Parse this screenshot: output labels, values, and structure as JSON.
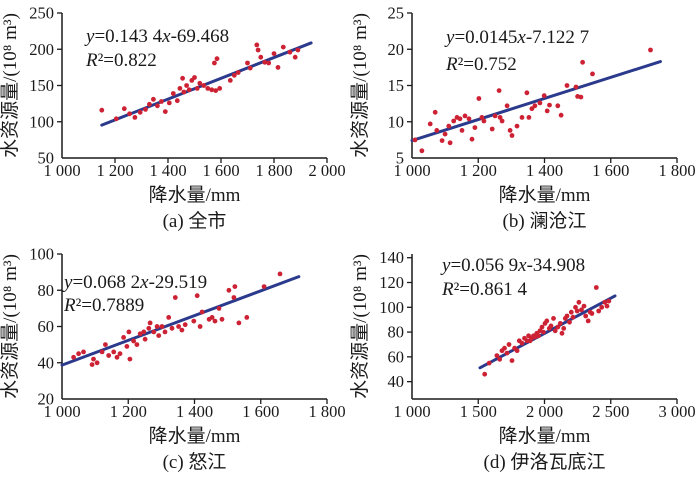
{
  "figure": {
    "background": "#ffffff",
    "point_color": "#cd2134",
    "trend_color": "#2b3a8c",
    "axis_color": "#1a1a1a",
    "text_color": "#1a1a1a"
  },
  "chart_data": [
    {
      "id": "a",
      "type": "scatter",
      "caption": "(a) 全市",
      "xlabel": "降水量/mm",
      "ylabel": "水资源量/(10⁸ m³)",
      "equation": "y=0.143 4x-69.468",
      "r2": "R²=0.822",
      "eq_pos": [
        86,
        42
      ],
      "r2_pos": [
        86,
        66
      ],
      "xlim": [
        1000,
        2000
      ],
      "ylim": [
        50,
        250
      ],
      "xticks": [
        1000,
        1200,
        1400,
        1600,
        1800,
        2000
      ],
      "xtick_labels": [
        "1 000",
        "1 200",
        "1 400",
        "1 600",
        "1 800",
        "2 000"
      ],
      "yticks": [
        50,
        100,
        150,
        200,
        250
      ],
      "ytick_labels": [
        "50",
        "100",
        "150",
        "200",
        "250"
      ],
      "grid": false,
      "legend": null,
      "trend": [
        [
          1150,
          95.4
        ],
        [
          1940,
          208.7
        ]
      ],
      "points": [
        [
          1150,
          116
        ],
        [
          1205,
          104
        ],
        [
          1235,
          118
        ],
        [
          1255,
          111
        ],
        [
          1275,
          106
        ],
        [
          1295,
          113
        ],
        [
          1315,
          117
        ],
        [
          1330,
          124
        ],
        [
          1345,
          131
        ],
        [
          1360,
          122
        ],
        [
          1375,
          128
        ],
        [
          1390,
          114
        ],
        [
          1405,
          126
        ],
        [
          1420,
          139
        ],
        [
          1435,
          129
        ],
        [
          1445,
          146
        ],
        [
          1455,
          160
        ],
        [
          1460,
          141
        ],
        [
          1470,
          150
        ],
        [
          1480,
          144
        ],
        [
          1490,
          157
        ],
        [
          1500,
          161
        ],
        [
          1510,
          146
        ],
        [
          1520,
          153
        ],
        [
          1535,
          150
        ],
        [
          1550,
          146
        ],
        [
          1565,
          144
        ],
        [
          1575,
          181
        ],
        [
          1580,
          143
        ],
        [
          1585,
          187
        ],
        [
          1595,
          146
        ],
        [
          1635,
          157
        ],
        [
          1650,
          164
        ],
        [
          1665,
          168
        ],
        [
          1700,
          181
        ],
        [
          1710,
          174
        ],
        [
          1735,
          206
        ],
        [
          1740,
          199
        ],
        [
          1750,
          189
        ],
        [
          1765,
          182
        ],
        [
          1780,
          181
        ],
        [
          1800,
          194
        ],
        [
          1815,
          175
        ],
        [
          1835,
          203
        ],
        [
          1860,
          196
        ],
        [
          1880,
          189
        ],
        [
          1890,
          199
        ]
      ]
    },
    {
      "id": "b",
      "type": "scatter",
      "caption": "(b) 澜沧江",
      "xlabel": "降水量/mm",
      "ylabel": "水资源量/(10⁸ m³)",
      "equation": "y=0.0145x-7.122 7",
      "r2": "R²=0.752",
      "eq_pos": [
        96,
        43
      ],
      "r2_pos": [
        96,
        70
      ],
      "xlim": [
        1000,
        1800
      ],
      "ylim": [
        5,
        25
      ],
      "xticks": [
        1000,
        1200,
        1400,
        1600,
        1800
      ],
      "xtick_labels": [
        "1 000",
        "1 200",
        "1 400",
        "1 600",
        "1 800"
      ],
      "yticks": [
        5,
        10,
        15,
        20,
        25
      ],
      "ytick_labels": [
        "5",
        "10",
        "15",
        "20",
        "25"
      ],
      "grid": false,
      "legend": null,
      "trend": [
        [
          1000,
          7.4
        ],
        [
          1750,
          18.3
        ]
      ],
      "points": [
        [
          1009,
          7.5
        ],
        [
          1030,
          6.0
        ],
        [
          1055,
          9.7
        ],
        [
          1070,
          11.3
        ],
        [
          1075,
          8.8
        ],
        [
          1091,
          7.4
        ],
        [
          1100,
          8.3
        ],
        [
          1111,
          9.4
        ],
        [
          1115,
          7.1
        ],
        [
          1126,
          10.1
        ],
        [
          1136,
          10.6
        ],
        [
          1145,
          10.4
        ],
        [
          1151,
          8.8
        ],
        [
          1160,
          10.8
        ],
        [
          1172,
          10.4
        ],
        [
          1181,
          7.6
        ],
        [
          1190,
          9.2
        ],
        [
          1202,
          13.2
        ],
        [
          1211,
          10.6
        ],
        [
          1217,
          10.1
        ],
        [
          1242,
          9.0
        ],
        [
          1251,
          10.8
        ],
        [
          1263,
          14.3
        ],
        [
          1266,
          10.6
        ],
        [
          1272,
          10.1
        ],
        [
          1287,
          12.2
        ],
        [
          1296,
          8.8
        ],
        [
          1302,
          8.1
        ],
        [
          1317,
          9.4
        ],
        [
          1332,
          10.6
        ],
        [
          1347,
          14.0
        ],
        [
          1353,
          10.6
        ],
        [
          1362,
          11.8
        ],
        [
          1371,
          12.2
        ],
        [
          1386,
          12.6
        ],
        [
          1399,
          13.6
        ],
        [
          1408,
          11.5
        ],
        [
          1415,
          12.3
        ],
        [
          1440,
          12.2
        ],
        [
          1450,
          10.9
        ],
        [
          1468,
          15.0
        ],
        [
          1495,
          14.8
        ],
        [
          1500,
          13.5
        ],
        [
          1510,
          13.4
        ],
        [
          1515,
          18.2
        ],
        [
          1545,
          16.6
        ],
        [
          1720,
          19.9
        ]
      ]
    },
    {
      "id": "c",
      "type": "scatter",
      "caption": "(c) 怒江",
      "xlabel": "降水量/mm",
      "ylabel": "水资源量/(10⁸ m³)",
      "equation": "y=0.068 2x-29.519",
      "r2": "R²=0.7889",
      "eq_pos": [
        64,
        47
      ],
      "r2_pos": [
        64,
        70
      ],
      "xlim": [
        1000,
        1800
      ],
      "ylim": [
        20,
        100
      ],
      "xticks": [
        1000,
        1200,
        1400,
        1600,
        1800
      ],
      "xtick_labels": [
        "1 000",
        "1 200",
        "1 400",
        "1 600",
        "1 800"
      ],
      "yticks": [
        20,
        40,
        60,
        80,
        100
      ],
      "ytick_labels": [
        "20",
        "40",
        "60",
        "80",
        "100"
      ],
      "grid": false,
      "legend": null,
      "trend": [
        [
          1000,
          38.7
        ],
        [
          1715,
          87.5
        ]
      ],
      "points": [
        [
          1035,
          43
        ],
        [
          1050,
          45
        ],
        [
          1065,
          46
        ],
        [
          1091,
          39
        ],
        [
          1095,
          42
        ],
        [
          1106,
          40
        ],
        [
          1121,
          46
        ],
        [
          1131,
          50
        ],
        [
          1141,
          44
        ],
        [
          1156,
          46
        ],
        [
          1166,
          43
        ],
        [
          1175,
          45
        ],
        [
          1186,
          54
        ],
        [
          1196,
          49
        ],
        [
          1202,
          57
        ],
        [
          1205,
          42
        ],
        [
          1216,
          52
        ],
        [
          1226,
          50
        ],
        [
          1236,
          56
        ],
        [
          1247,
          57
        ],
        [
          1251,
          53
        ],
        [
          1262,
          59
        ],
        [
          1266,
          62
        ],
        [
          1277,
          57
        ],
        [
          1287,
          60
        ],
        [
          1292,
          55
        ],
        [
          1302,
          60
        ],
        [
          1311,
          57
        ],
        [
          1322,
          65
        ],
        [
          1332,
          59
        ],
        [
          1342,
          76
        ],
        [
          1352,
          60
        ],
        [
          1362,
          58
        ],
        [
          1372,
          61
        ],
        [
          1398,
          63
        ],
        [
          1408,
          77
        ],
        [
          1417,
          60
        ],
        [
          1423,
          68
        ],
        [
          1444,
          64
        ],
        [
          1453,
          65
        ],
        [
          1462,
          63
        ],
        [
          1474,
          70
        ],
        [
          1483,
          64
        ],
        [
          1504,
          80
        ],
        [
          1519,
          76
        ],
        [
          1522,
          82
        ],
        [
          1534,
          62
        ],
        [
          1558,
          65
        ],
        [
          1610,
          82
        ],
        [
          1658,
          89
        ]
      ]
    },
    {
      "id": "d",
      "type": "scatter",
      "caption": "(d) 伊洛瓦底江",
      "xlabel": "降水量/mm",
      "ylabel": "水资源量/(10⁸ m³)",
      "equation": "y=0.056 9x-34.908",
      "r2": "R²=0.861 4",
      "eq_pos": [
        92,
        30
      ],
      "r2_pos": [
        92,
        54
      ],
      "xlim": [
        1000,
        3000
      ],
      "ylim": [
        26,
        143
      ],
      "xticks": [
        1000,
        1500,
        2000,
        2500,
        3000
      ],
      "xtick_labels": [
        "1 000",
        "1 500",
        "2 000",
        "2 500",
        "3 000"
      ],
      "yticks": [
        40,
        60,
        80,
        100,
        120,
        140
      ],
      "ytick_labels": [
        "40",
        "60",
        "80",
        "100",
        "120",
        "140"
      ],
      "grid": false,
      "legend": null,
      "trend": [
        [
          1513,
          51.2
        ],
        [
          2532,
          109.2
        ]
      ],
      "points": [
        [
          1549,
          46
        ],
        [
          1583,
          55
        ],
        [
          1641,
          61
        ],
        [
          1662,
          58
        ],
        [
          1679,
          65
        ],
        [
          1698,
          67
        ],
        [
          1717,
          63
        ],
        [
          1732,
          70
        ],
        [
          1755,
          57
        ],
        [
          1774,
          67
        ],
        [
          1793,
          65
        ],
        [
          1810,
          73
        ],
        [
          1830,
          71
        ],
        [
          1849,
          75
        ],
        [
          1868,
          73
        ],
        [
          1880,
          77
        ],
        [
          1891,
          73
        ],
        [
          1902,
          75
        ],
        [
          1917,
          77
        ],
        [
          1928,
          76
        ],
        [
          1942,
          79
        ],
        [
          1955,
          77
        ],
        [
          1966,
          81
        ],
        [
          1981,
          84
        ],
        [
          1992,
          80
        ],
        [
          2004,
          87
        ],
        [
          2017,
          89
        ],
        [
          2036,
          83
        ],
        [
          2049,
          85
        ],
        [
          2068,
          91
        ],
        [
          2081,
          81
        ],
        [
          2100,
          84
        ],
        [
          2119,
          87
        ],
        [
          2132,
          79
        ],
        [
          2145,
          83
        ],
        [
          2157,
          91
        ],
        [
          2170,
          93
        ],
        [
          2189,
          88
        ],
        [
          2202,
          96
        ],
        [
          2215,
          92
        ],
        [
          2234,
          100
        ],
        [
          2247,
          97
        ],
        [
          2260,
          104
        ],
        [
          2279,
          98
        ],
        [
          2298,
          101
        ],
        [
          2311,
          93
        ],
        [
          2330,
          89
        ],
        [
          2345,
          96
        ],
        [
          2358,
          95
        ],
        [
          2391,
          116
        ],
        [
          2409,
          97
        ],
        [
          2432,
          100
        ],
        [
          2455,
          104
        ],
        [
          2472,
          101
        ],
        [
          2485,
          105
        ]
      ]
    }
  ]
}
